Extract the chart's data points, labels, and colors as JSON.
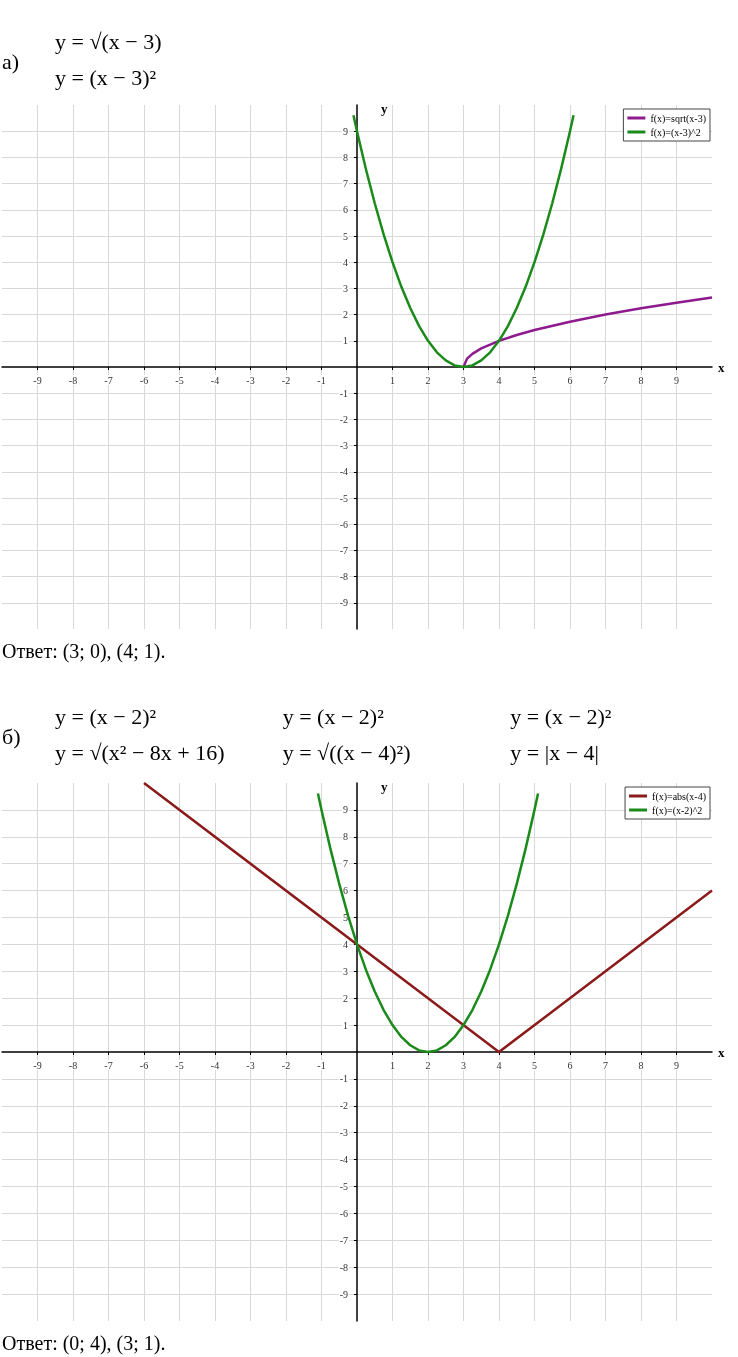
{
  "chart_data": [
    {
      "type": "line",
      "title": "а)",
      "annotations": [
        "y = √(x − 3)",
        "y = (x − 3)²",
        "Ответ: (3; 0), (4; 1)."
      ],
      "xlabel": "x",
      "ylabel": "y",
      "xlim": [
        -10,
        10
      ],
      "ylim": [
        -10,
        10
      ],
      "xticks": [
        -9,
        -8,
        -7,
        -6,
        -5,
        -4,
        -3,
        -2,
        -1,
        1,
        2,
        3,
        4,
        5,
        6,
        7,
        8,
        9
      ],
      "yticks": [
        -9,
        -8,
        -7,
        -6,
        -5,
        -4,
        -3,
        -2,
        -1,
        1,
        2,
        3,
        4,
        5,
        6,
        7,
        8,
        9
      ],
      "grid": true,
      "legend": "top right",
      "series": [
        {
          "name": "f(x)=sqrt(x-3)",
          "color": "#8e1a8e",
          "x": [
            3,
            3.1,
            3.25,
            3.5,
            4,
            4.5,
            5,
            6,
            7,
            8,
            9,
            10
          ],
          "values": [
            0,
            0.32,
            0.5,
            0.71,
            1,
            1.22,
            1.41,
            1.73,
            2,
            2.24,
            2.45,
            2.65
          ]
        },
        {
          "name": "f(x)=(x-3)^2",
          "color": "#1a8a1a",
          "x": [
            -0.1,
            0,
            0.25,
            0.5,
            0.75,
            1,
            1.25,
            1.5,
            1.75,
            2,
            2.25,
            2.5,
            2.75,
            3,
            3.25,
            3.5,
            3.75,
            4,
            4.25,
            4.5,
            4.75,
            5,
            5.25,
            5.5,
            5.75,
            6,
            6.1
          ],
          "values": [
            9.61,
            9,
            7.56,
            6.25,
            5.06,
            4,
            3.06,
            2.25,
            1.56,
            1,
            0.56,
            0.25,
            0.06,
            0,
            0.06,
            0.25,
            0.56,
            1,
            1.56,
            2.25,
            3.06,
            4,
            5.06,
            6.25,
            7.56,
            9,
            9.61
          ]
        }
      ]
    },
    {
      "type": "line",
      "title": "б)",
      "annotations": [
        "y = (x − 2)²",
        "y = √(x² − 8x + 16)",
        "y = (x − 2)²",
        "y = √((x − 4)²)",
        "y = (x − 2)²",
        "y = |x − 4|",
        "Ответ: (0; 4), (3; 1)."
      ],
      "xlabel": "x",
      "ylabel": "y",
      "xlim": [
        -10,
        10
      ],
      "ylim": [
        -10,
        10
      ],
      "xticks": [
        -9,
        -8,
        -7,
        -6,
        -5,
        -4,
        -3,
        -2,
        -1,
        1,
        2,
        3,
        4,
        5,
        6,
        7,
        8,
        9
      ],
      "yticks": [
        -9,
        -8,
        -7,
        -6,
        -5,
        -4,
        -3,
        -2,
        -1,
        1,
        2,
        3,
        4,
        5,
        6,
        7,
        8,
        9
      ],
      "grid": true,
      "legend": "top right",
      "series": [
        {
          "name": "f(x)=abs(x-4)",
          "color": "#8b1a1a",
          "x": [
            -6,
            4,
            10
          ],
          "values": [
            10,
            0,
            6
          ]
        },
        {
          "name": "f(x)=(x-2)^2",
          "color": "#1a8a1a",
          "x": [
            -1.1,
            -1,
            -0.75,
            -0.5,
            -0.25,
            0,
            0.25,
            0.5,
            0.75,
            1,
            1.25,
            1.5,
            1.75,
            2,
            2.25,
            2.5,
            2.75,
            3,
            3.25,
            3.5,
            3.75,
            4,
            4.25,
            4.5,
            4.75,
            5,
            5.1
          ],
          "values": [
            9.61,
            9,
            7.56,
            6.25,
            5.06,
            4,
            3.06,
            2.25,
            1.56,
            1,
            0.56,
            0.25,
            0.06,
            0,
            0.06,
            0.25,
            0.56,
            1,
            1.56,
            2.25,
            3.06,
            4,
            5.06,
            6.25,
            7.56,
            9,
            9.61
          ]
        }
      ]
    }
  ]
}
